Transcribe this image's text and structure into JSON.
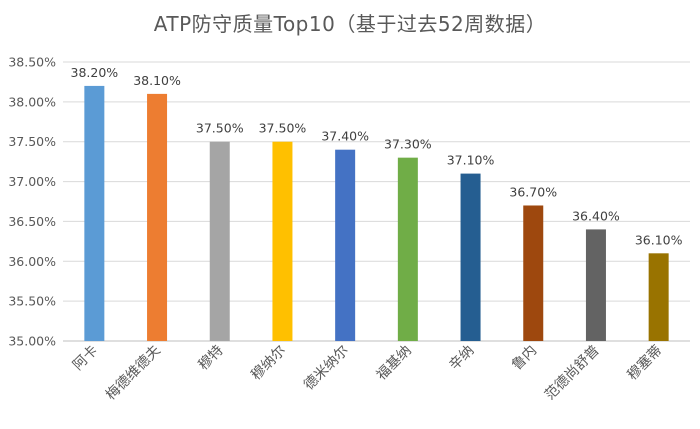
{
  "chart_data": {
    "type": "bar",
    "title": "ATP防守质量Top10（基于过去52周数据）",
    "categories": [
      "阿卡",
      "梅德维德夫",
      "穆特",
      "穆纳尔",
      "德米纳尔",
      "福基纳",
      "辛纳",
      "鲁内",
      "范德尚舒普",
      "穆塞蒂"
    ],
    "values": [
      38.2,
      38.1,
      37.5,
      37.5,
      37.4,
      37.3,
      37.1,
      36.7,
      36.4,
      36.1
    ],
    "data_labels": [
      "38.20%",
      "38.10%",
      "37.50%",
      "37.50%",
      "37.40%",
      "37.30%",
      "37.10%",
      "36.70%",
      "36.40%",
      "36.10%"
    ],
    "colors": [
      "#5B9BD5",
      "#ED7D31",
      "#A5A5A5",
      "#FFC000",
      "#4472C4",
      "#70AD47",
      "#255E91",
      "#9E480E",
      "#636363",
      "#997300"
    ],
    "ylim": [
      35.0,
      38.5
    ],
    "yticks": [
      35.0,
      35.5,
      36.0,
      36.5,
      37.0,
      37.5,
      38.0,
      38.5
    ],
    "ytick_labels": [
      "35.00%",
      "35.50%",
      "36.00%",
      "36.50%",
      "37.00%",
      "37.50%",
      "38.00%",
      "38.50%"
    ],
    "grid": true,
    "legend": "none"
  }
}
